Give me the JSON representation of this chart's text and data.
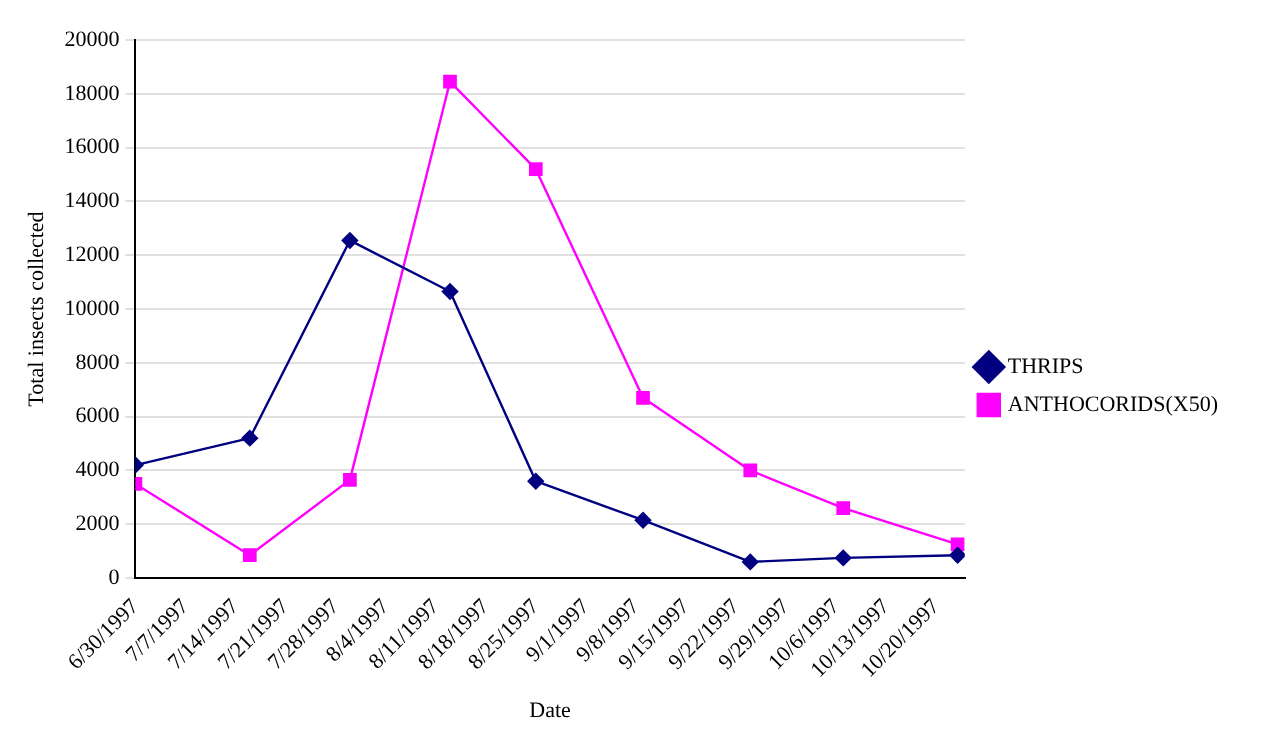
{
  "chart_data": {
    "type": "line",
    "xlabel": "Date",
    "ylabel": "Total insects collected",
    "series": [
      {
        "name": "THRIPS",
        "color": "#000080",
        "marker": "diamond",
        "x": [
          "1997-06-30",
          "1997-07-16",
          "1997-07-30",
          "1997-08-13",
          "1997-08-25",
          "1997-09-09",
          "1997-09-24",
          "1997-10-07",
          "1997-10-23"
        ],
        "values": [
          4200,
          5200,
          12550,
          10650,
          3600,
          2150,
          600,
          750,
          850
        ]
      },
      {
        "name": "ANTHOCORIDS(X50)",
        "color": "#ff00ff",
        "marker": "square",
        "x": [
          "1997-06-30",
          "1997-07-16",
          "1997-07-30",
          "1997-08-13",
          "1997-08-25",
          "1997-09-09",
          "1997-09-24",
          "1997-10-07",
          "1997-10-23"
        ],
        "values": [
          3500,
          850,
          3650,
          18450,
          15200,
          6700,
          4000,
          2600,
          1250
        ]
      }
    ],
    "xlim": [
      "1997-06-30",
      "1997-10-24"
    ],
    "xticks": [
      {
        "value": "1997-06-30",
        "label": "6/30/1997"
      },
      {
        "value": "1997-07-07",
        "label": "7/7/1997"
      },
      {
        "value": "1997-07-14",
        "label": "7/14/1997"
      },
      {
        "value": "1997-07-21",
        "label": "7/21/1997"
      },
      {
        "value": "1997-07-28",
        "label": "7/28/1997"
      },
      {
        "value": "1997-08-04",
        "label": "8/4/1997"
      },
      {
        "value": "1997-08-11",
        "label": "8/11/1997"
      },
      {
        "value": "1997-08-18",
        "label": "8/18/1997"
      },
      {
        "value": "1997-08-25",
        "label": "8/25/1997"
      },
      {
        "value": "1997-09-01",
        "label": "9/1/1997"
      },
      {
        "value": "1997-09-08",
        "label": "9/8/1997"
      },
      {
        "value": "1997-09-15",
        "label": "9/15/1997"
      },
      {
        "value": "1997-09-22",
        "label": "9/22/1997"
      },
      {
        "value": "1997-09-29",
        "label": "9/29/1997"
      },
      {
        "value": "1997-10-06",
        "label": "10/6/1997"
      },
      {
        "value": "1997-10-13",
        "label": "10/13/1997"
      },
      {
        "value": "1997-10-20",
        "label": "10/20/1997"
      }
    ],
    "ylim": [
      0,
      20000
    ],
    "yticks": [
      0,
      2000,
      4000,
      6000,
      8000,
      10000,
      12000,
      14000,
      16000,
      18000,
      20000
    ],
    "grid": "y",
    "legend": "right",
    "line_style": "solid"
  }
}
